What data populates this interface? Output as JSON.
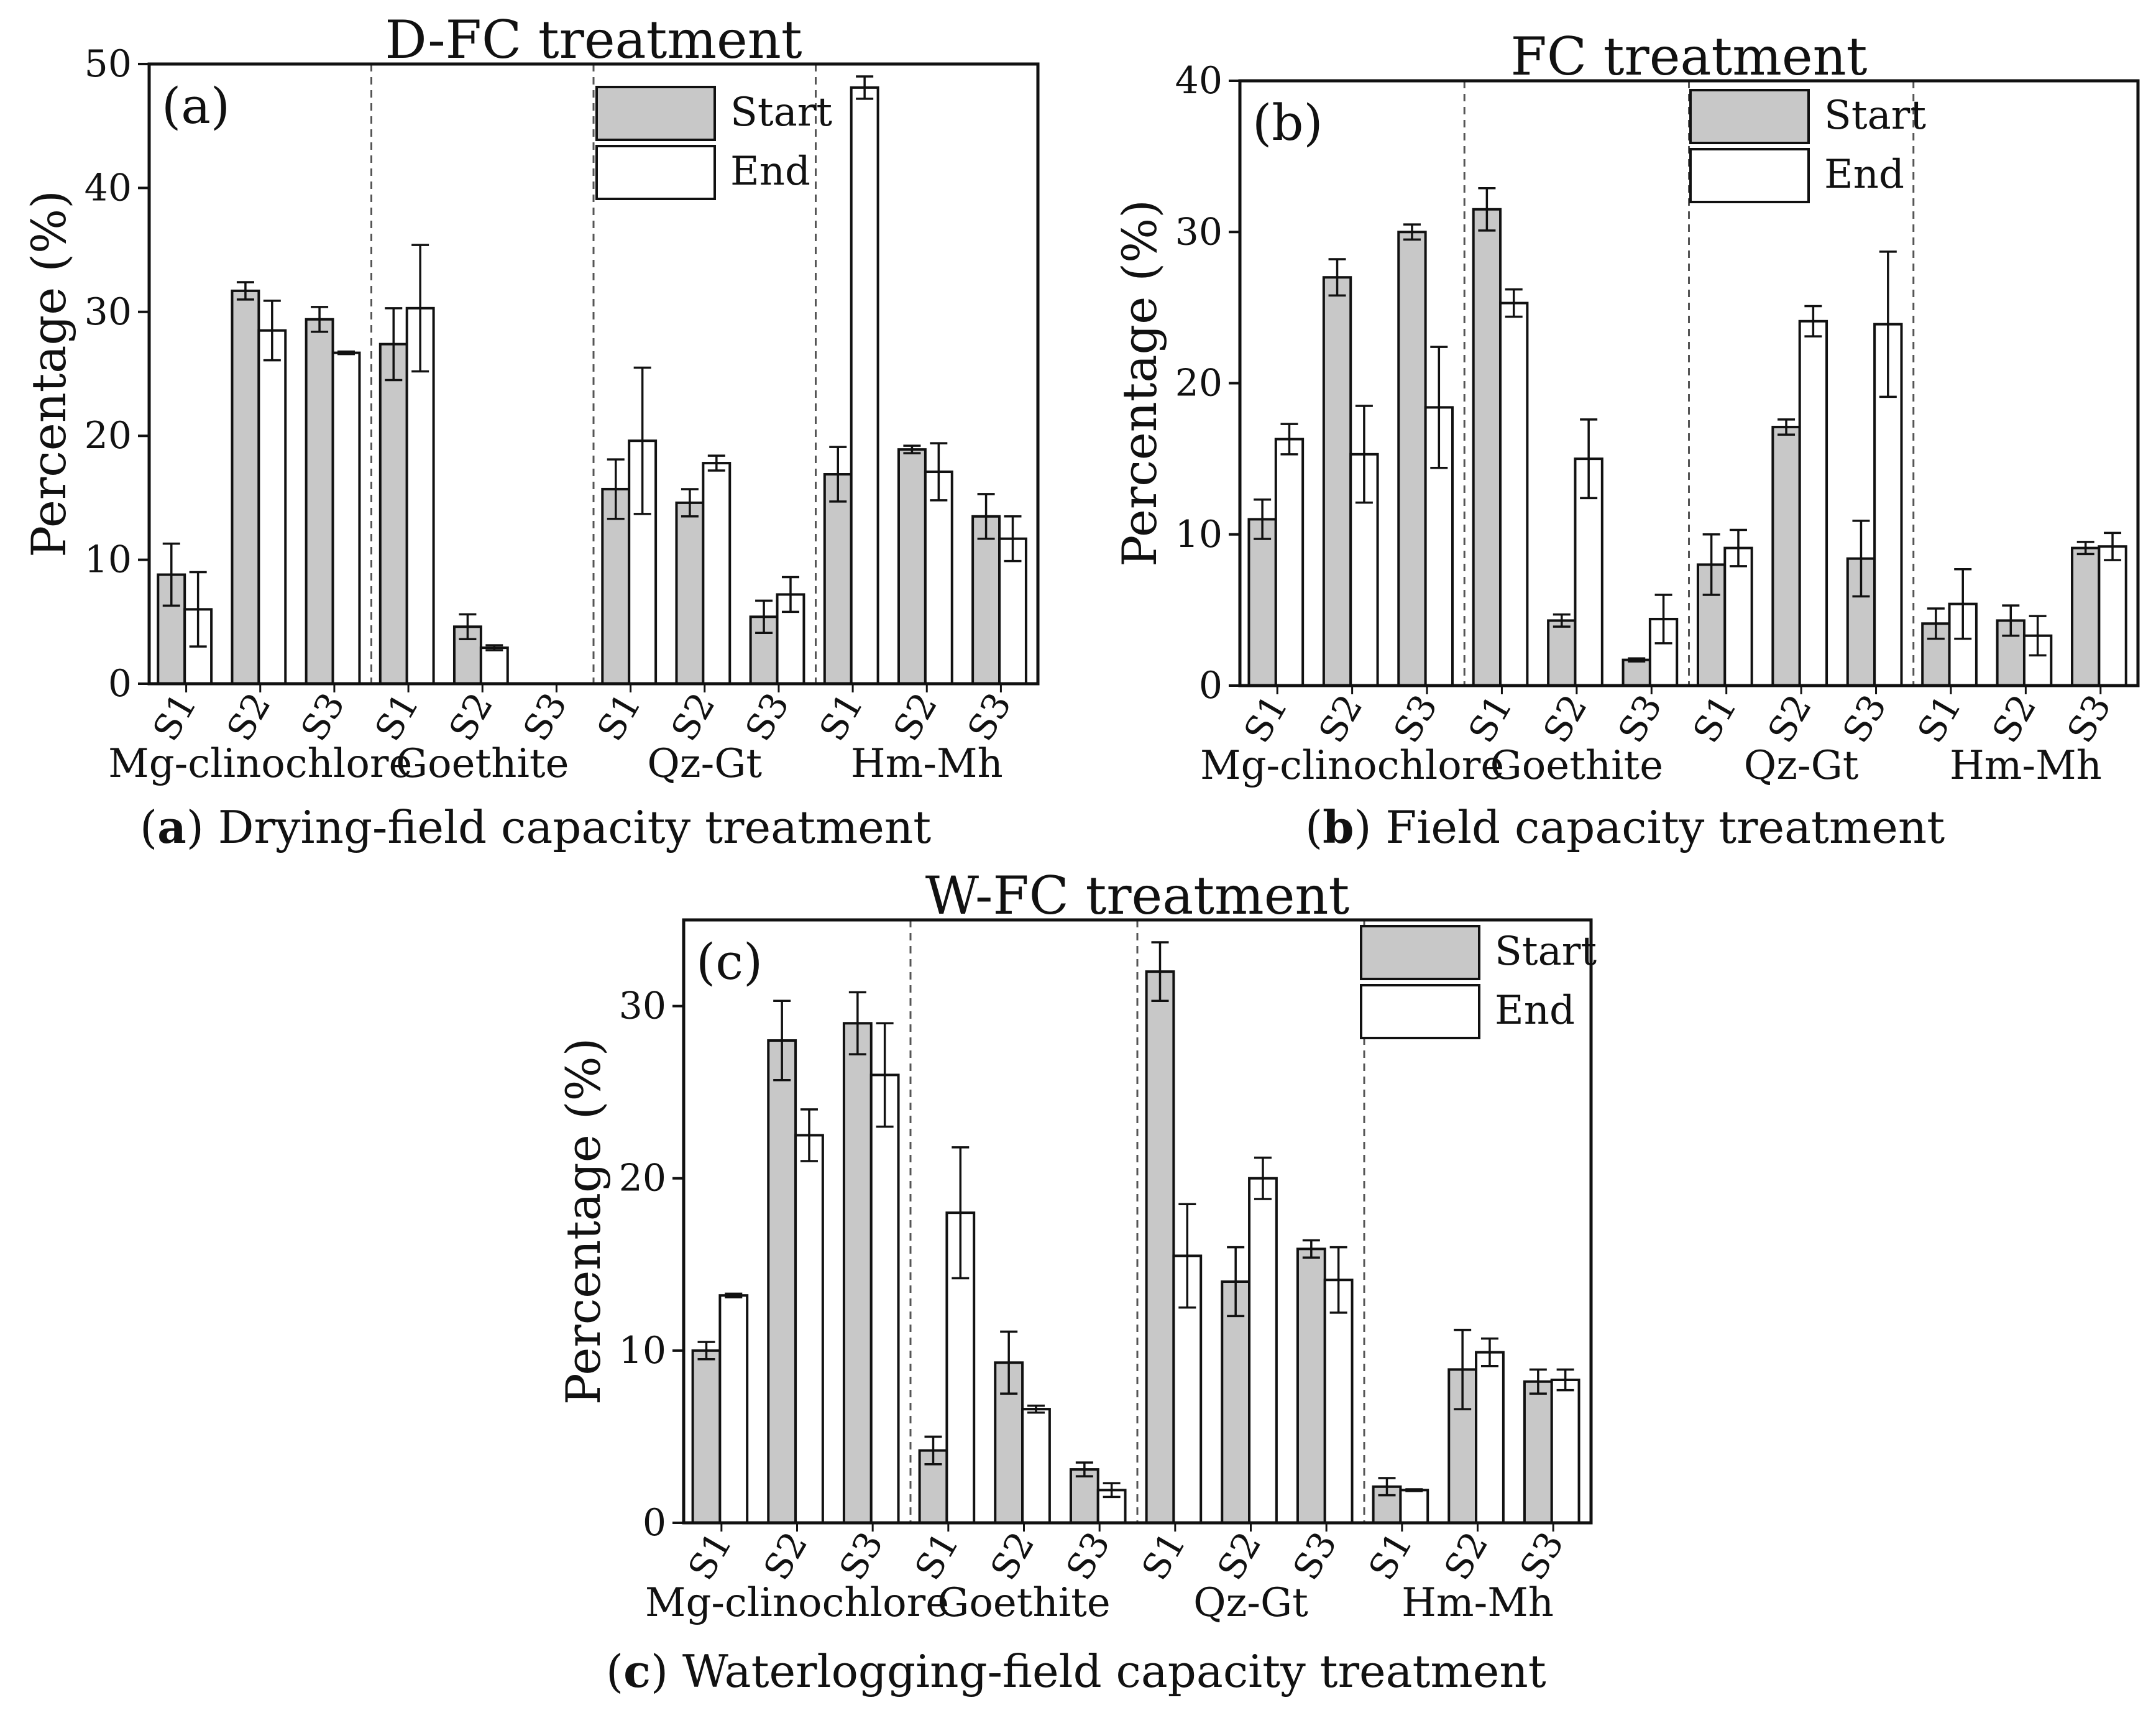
{
  "chart_data": [
    {
      "type": "bar",
      "panel": "(a)",
      "title": "D-FC treatment",
      "ylabel": "Percentage (%)",
      "xlabel": "",
      "ylim": [
        0,
        50
      ],
      "yticks": [
        0,
        10,
        20,
        30,
        40,
        50
      ],
      "groups": [
        "Mg-clinochlore",
        "Goethite",
        "Qz-Gt",
        "Hm-Mh"
      ],
      "samples": [
        "S1",
        "S2",
        "S3"
      ],
      "series": [
        {
          "name": "Start",
          "color": "#c8c8c8",
          "values": [
            8.8,
            31.7,
            29.4,
            27.4,
            4.6,
            0,
            15.7,
            14.6,
            5.4,
            16.9,
            18.9,
            13.5
          ],
          "errors": [
            2.5,
            0.7,
            1.0,
            2.9,
            1.0,
            0,
            2.4,
            1.1,
            1.3,
            2.2,
            0.3,
            1.8
          ]
        },
        {
          "name": "End",
          "color": "#ffffff",
          "values": [
            6.0,
            28.5,
            26.7,
            30.3,
            2.9,
            0,
            19.6,
            17.8,
            7.2,
            48.1,
            17.1,
            11.7
          ],
          "errors": [
            3.0,
            2.4,
            0.1,
            5.1,
            0.2,
            0,
            5.9,
            0.6,
            1.4,
            0.9,
            2.3,
            1.8
          ]
        }
      ],
      "caption_letter": "a",
      "caption_text": " Drying-field capacity treatment"
    },
    {
      "type": "bar",
      "panel": "(b)",
      "title": "FC treatment",
      "ylabel": "Percentage (%)",
      "xlabel": "",
      "ylim": [
        0,
        40
      ],
      "yticks": [
        0,
        10,
        20,
        30,
        40
      ],
      "groups": [
        "Mg-clinochlore",
        "Goethite",
        "Qz-Gt",
        "Hm-Mh"
      ],
      "samples": [
        "S1",
        "S2",
        "S3"
      ],
      "series": [
        {
          "name": "Start",
          "color": "#c8c8c8",
          "values": [
            11.0,
            27.0,
            30.0,
            31.5,
            4.3,
            1.7,
            8.0,
            17.1,
            8.4,
            4.1,
            4.3,
            9.1
          ],
          "errors": [
            1.3,
            1.2,
            0.5,
            1.4,
            0.4,
            0.1,
            2.0,
            0.5,
            2.5,
            1.0,
            1.0,
            0.4
          ]
        },
        {
          "name": "End",
          "color": "#ffffff",
          "values": [
            16.3,
            15.3,
            18.4,
            25.3,
            15.0,
            4.4,
            9.1,
            24.1,
            23.9,
            5.4,
            3.3,
            9.2
          ],
          "errors": [
            1.0,
            3.2,
            4.0,
            0.9,
            2.6,
            1.6,
            1.2,
            1.0,
            4.8,
            2.3,
            1.3,
            0.9
          ]
        }
      ],
      "caption_letter": "b",
      "caption_text": " Field capacity treatment"
    },
    {
      "type": "bar",
      "panel": "(c)",
      "title": "W-FC treatment",
      "ylabel": "Percentage (%)",
      "xlabel": "",
      "ylim": [
        0,
        35
      ],
      "yticks": [
        0,
        10,
        20,
        30
      ],
      "groups": [
        "Mg-clinochlore",
        "Goethite",
        "Qz-Gt",
        "Hm-Mh"
      ],
      "samples": [
        "S1",
        "S2",
        "S3"
      ],
      "series": [
        {
          "name": "Start",
          "color": "#c8c8c8",
          "values": [
            10.0,
            28.0,
            29.0,
            4.2,
            9.3,
            3.1,
            32.0,
            14.0,
            15.9,
            2.1,
            8.9,
            8.2
          ],
          "errors": [
            0.5,
            2.3,
            1.8,
            0.8,
            1.8,
            0.4,
            1.7,
            2.0,
            0.5,
            0.5,
            2.3,
            0.7
          ]
        },
        {
          "name": "End",
          "color": "#ffffff",
          "values": [
            13.2,
            22.5,
            26.0,
            18.0,
            6.6,
            1.9,
            15.5,
            20.0,
            14.1,
            1.9,
            9.9,
            8.3
          ],
          "errors": [
            0.1,
            1.5,
            3.0,
            3.8,
            0.2,
            0.4,
            3.0,
            1.2,
            1.9,
            0.05,
            0.8,
            0.6
          ]
        }
      ],
      "caption_letter": "c",
      "caption_text": " Waterlogging-field capacity treatment"
    }
  ]
}
